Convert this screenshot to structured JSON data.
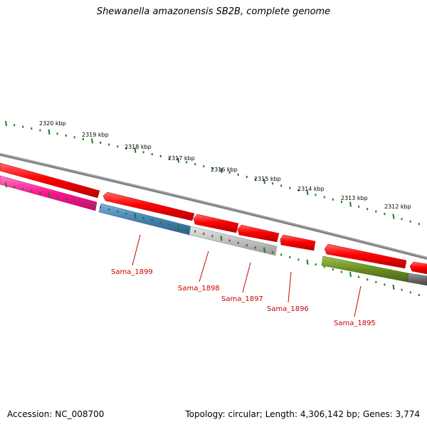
{
  "title": "Shewanella amazonensis SB2B, complete genome",
  "footer": {
    "accession": "Accession: NC_008700",
    "topology": "Topology: circular; Length: 4,306,142 bp; Genes: 3,774"
  },
  "ruler": {
    "labels": [
      "2320 kbp",
      "2319 kbp",
      "2318 kbp",
      "2317 kbp",
      "2316 kbp",
      "2315 kbp",
      "2314 kbp",
      "2313 kbp",
      "2312 kbp"
    ]
  },
  "gene_labels": [
    "Sama_1899",
    "Sama_1898",
    "Sama_1897",
    "Sama_1896",
    "Sama_1895"
  ],
  "colors": {
    "forward_gene": "#ff0000",
    "backbone": "#808080",
    "ruler_tick": "#1f7a1f",
    "label_red": "#cc0000",
    "pink_feature": "#ff1493",
    "blue_feature": "#4682b4",
    "silver_feature": "#bfbfbf",
    "olive_feature": "#6b8e23",
    "gray_feature": "#696969"
  }
}
